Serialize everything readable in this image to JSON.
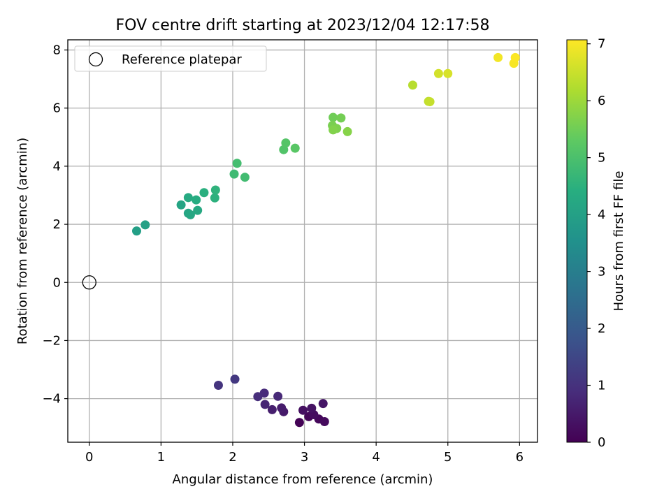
{
  "chart_data": {
    "type": "scatter",
    "title": "FOV centre drift starting at 2023/12/04 12:17:58",
    "xlabel": "Angular distance from reference (arcmin)",
    "ylabel": "Rotation from reference (arcmin)",
    "xlim": [
      -0.3,
      6.25
    ],
    "ylim": [
      -5.5,
      8.35
    ],
    "xticks": [
      0,
      1,
      2,
      3,
      4,
      5,
      6
    ],
    "xtick_labels": [
      "0",
      "1",
      "2",
      "3",
      "4",
      "5",
      "6"
    ],
    "yticks": [
      -4,
      -2,
      0,
      2,
      4,
      6,
      8
    ],
    "ytick_labels": [
      "−4",
      "−2",
      "0",
      "2",
      "4",
      "6",
      "8"
    ],
    "grid": true,
    "legend": {
      "position": "top-left",
      "entries": [
        "Reference platepar"
      ]
    },
    "reference_point": {
      "x": 0,
      "y": 0,
      "label": "Reference platepar"
    },
    "colorbar": {
      "label": "Hours from first FF file",
      "colormap": "viridis",
      "range": [
        0,
        7.07
      ],
      "ticks": [
        0,
        1,
        2,
        3,
        4,
        5,
        6,
        7
      ],
      "tick_labels": [
        "0",
        "1",
        "2",
        "3",
        "4",
        "5",
        "6",
        "7"
      ]
    },
    "points": [
      {
        "x": 2.93,
        "y": -4.82,
        "hours": 0.05
      },
      {
        "x": 3.06,
        "y": -4.62,
        "hours": 0.1
      },
      {
        "x": 3.2,
        "y": -4.7,
        "hours": 0.15
      },
      {
        "x": 3.28,
        "y": -4.79,
        "hours": 0.2
      },
      {
        "x": 3.13,
        "y": -4.55,
        "hours": 0.25
      },
      {
        "x": 2.98,
        "y": -4.4,
        "hours": 0.3
      },
      {
        "x": 3.1,
        "y": -4.33,
        "hours": 0.35
      },
      {
        "x": 3.26,
        "y": -4.17,
        "hours": 0.4
      },
      {
        "x": 2.71,
        "y": -4.45,
        "hours": 0.5
      },
      {
        "x": 2.68,
        "y": -4.32,
        "hours": 0.55
      },
      {
        "x": 2.55,
        "y": -4.38,
        "hours": 0.6
      },
      {
        "x": 2.45,
        "y": -4.2,
        "hours": 0.7
      },
      {
        "x": 2.63,
        "y": -3.92,
        "hours": 0.8
      },
      {
        "x": 2.44,
        "y": -3.81,
        "hours": 0.85
      },
      {
        "x": 2.35,
        "y": -3.93,
        "hours": 0.9
      },
      {
        "x": 1.8,
        "y": -3.54,
        "hours": 1.05
      },
      {
        "x": 2.03,
        "y": -3.33,
        "hours": 1.15
      },
      {
        "x": 0.66,
        "y": 1.77,
        "hours": 3.95
      },
      {
        "x": 0.78,
        "y": 1.98,
        "hours": 4.0
      },
      {
        "x": 1.28,
        "y": 2.67,
        "hours": 4.1
      },
      {
        "x": 1.38,
        "y": 2.38,
        "hours": 4.15
      },
      {
        "x": 1.41,
        "y": 2.33,
        "hours": 4.2
      },
      {
        "x": 1.51,
        "y": 2.48,
        "hours": 4.25
      },
      {
        "x": 1.38,
        "y": 2.92,
        "hours": 4.3
      },
      {
        "x": 1.49,
        "y": 2.84,
        "hours": 4.35
      },
      {
        "x": 1.6,
        "y": 3.09,
        "hours": 4.45
      },
      {
        "x": 1.75,
        "y": 2.91,
        "hours": 4.5
      },
      {
        "x": 1.76,
        "y": 3.18,
        "hours": 4.55
      },
      {
        "x": 2.02,
        "y": 3.73,
        "hours": 4.8
      },
      {
        "x": 2.17,
        "y": 3.62,
        "hours": 4.85
      },
      {
        "x": 2.06,
        "y": 4.1,
        "hours": 4.9
      },
      {
        "x": 2.71,
        "y": 4.57,
        "hours": 5.1
      },
      {
        "x": 2.74,
        "y": 4.8,
        "hours": 5.15
      },
      {
        "x": 2.87,
        "y": 4.62,
        "hours": 5.2
      },
      {
        "x": 3.4,
        "y": 5.68,
        "hours": 5.5
      },
      {
        "x": 3.51,
        "y": 5.66,
        "hours": 5.55
      },
      {
        "x": 3.39,
        "y": 5.4,
        "hours": 5.6
      },
      {
        "x": 3.45,
        "y": 5.3,
        "hours": 5.65
      },
      {
        "x": 3.4,
        "y": 5.25,
        "hours": 5.7
      },
      {
        "x": 3.6,
        "y": 5.19,
        "hours": 5.75
      },
      {
        "x": 4.51,
        "y": 6.79,
        "hours": 6.3
      },
      {
        "x": 4.73,
        "y": 6.23,
        "hours": 6.4
      },
      {
        "x": 4.75,
        "y": 6.22,
        "hours": 6.45
      },
      {
        "x": 4.87,
        "y": 7.19,
        "hours": 6.6
      },
      {
        "x": 5.0,
        "y": 7.19,
        "hours": 6.65
      },
      {
        "x": 5.7,
        "y": 7.74,
        "hours": 6.95
      },
      {
        "x": 5.92,
        "y": 7.54,
        "hours": 7.0
      },
      {
        "x": 5.94,
        "y": 7.74,
        "hours": 7.05
      }
    ]
  }
}
